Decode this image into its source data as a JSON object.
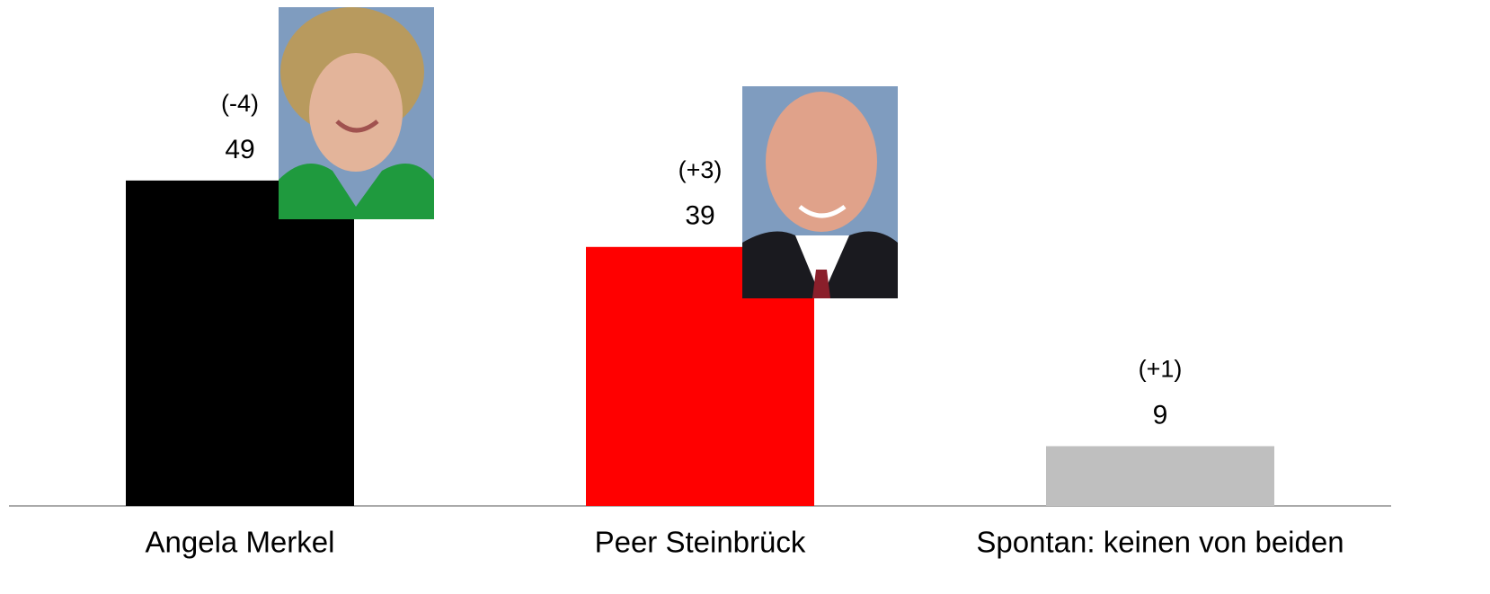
{
  "chart_data": {
    "type": "bar",
    "categories": [
      "Angela Merkel",
      "Peer Steinbrück",
      "Spontan: keinen von beiden"
    ],
    "values": [
      49,
      39,
      9
    ],
    "colors": [
      "#000000",
      "#ff0000",
      "#bfbfbf"
    ],
    "annotations": [
      "(-4)",
      "(+3)",
      "(+1)"
    ]
  }
}
